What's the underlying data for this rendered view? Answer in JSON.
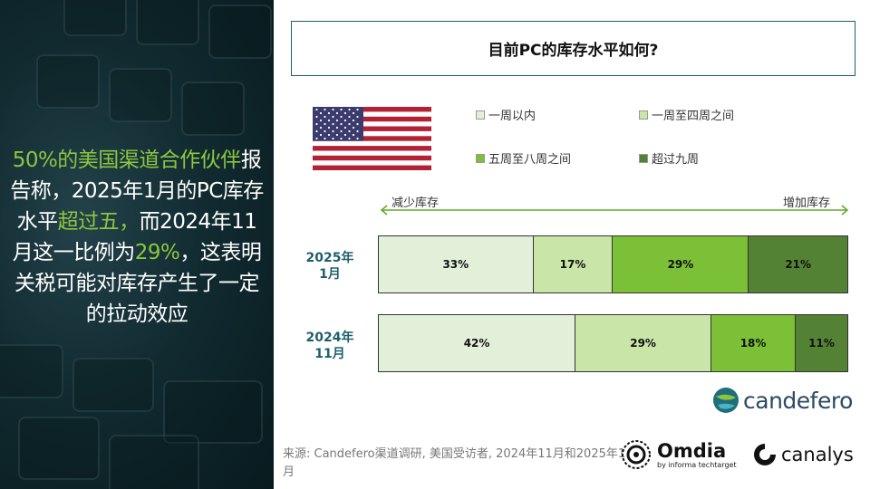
{
  "left_panel": {
    "headline_parts": [
      "50%的美国渠道合作伙伴",
      "报告称，2025年1月的PC库存水平",
      "超过五，",
      "而2024年11月这一比例为",
      "29%",
      "，这表明关税可能对库存产生了一定的拉动效应"
    ]
  },
  "title": "目前PC的库存水平如何?",
  "legend": [
    {
      "label": "一周以内",
      "color": "#e2f0d9"
    },
    {
      "label": "一周至四周之间",
      "color": "#c9e6a8"
    },
    {
      "label": "五周至八周之间",
      "color": "#7cc037"
    },
    {
      "label": "超过九周",
      "color": "#548235"
    }
  ],
  "arrow": {
    "left_label": "减少库存",
    "right_label": "增加库存"
  },
  "chart_data": {
    "type": "bar",
    "orientation": "horizontal-stacked-100",
    "categories": [
      "2025年1月",
      "2024年11月"
    ],
    "series": [
      {
        "name": "一周以内",
        "values": [
          33,
          42
        ],
        "labels": [
          "33%",
          "42%"
        ]
      },
      {
        "name": "一周至四周之间",
        "values": [
          17,
          29
        ],
        "labels": [
          "17%",
          "29%"
        ]
      },
      {
        "name": "五周至八周之间",
        "values": [
          29,
          18
        ],
        "labels": [
          "29%",
          "18%"
        ]
      },
      {
        "name": "超过九周",
        "values": [
          21,
          11
        ],
        "labels": [
          "21%",
          "11%"
        ]
      }
    ]
  },
  "row_labels": [
    [
      "2025年",
      "1月"
    ],
    [
      "2024年",
      "11月"
    ]
  ],
  "source": "来源: Candefero渠道调研, 美国受访者, 2024年11月和2025年1月",
  "logos": {
    "candefero": "candefero",
    "omdia": "Omdia",
    "omdia_sub": "by informa techtarget",
    "canalys": "canalys"
  }
}
